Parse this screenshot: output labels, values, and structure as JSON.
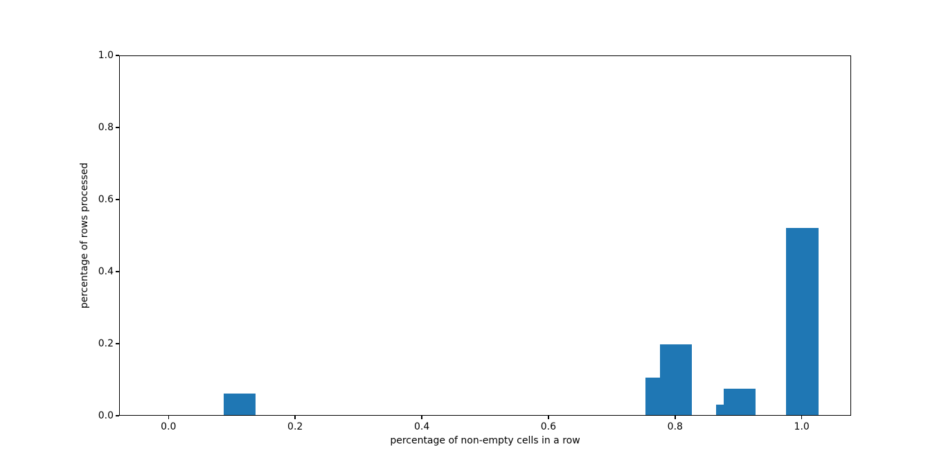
{
  "chart_data": {
    "type": "bar",
    "title": "",
    "xlabel": "percentage of non-empty cells in a row",
    "ylabel": "percentage of rows processed",
    "bar_color": "#1f77b4",
    "bar_width": 0.051,
    "xlim": [
      -0.078,
      1.078
    ],
    "ylim": [
      0,
      1
    ],
    "grid": "off",
    "legend": "none",
    "x_ticks": [
      {
        "value": 0.0,
        "label": "0.0"
      },
      {
        "value": 0.2,
        "label": "0.2"
      },
      {
        "value": 0.4,
        "label": "0.4"
      },
      {
        "value": 0.6,
        "label": "0.6"
      },
      {
        "value": 0.8,
        "label": "0.8"
      },
      {
        "value": 1.0,
        "label": "1.0"
      }
    ],
    "y_ticks": [
      {
        "value": 0.0,
        "label": "0.0"
      },
      {
        "value": 0.2,
        "label": "0.2"
      },
      {
        "value": 0.4,
        "label": "0.4"
      },
      {
        "value": 0.6,
        "label": "0.6"
      },
      {
        "value": 0.8,
        "label": "0.8"
      },
      {
        "value": 1.0,
        "label": "1.0"
      }
    ],
    "bars": [
      {
        "x": 0.111,
        "height": 0.063
      },
      {
        "x": 0.778,
        "height": 0.107
      },
      {
        "x": 0.8,
        "height": 0.2
      },
      {
        "x": 0.889,
        "height": 0.033
      },
      {
        "x": 0.901,
        "height": 0.077
      },
      {
        "x": 1.0,
        "height": 0.523
      }
    ]
  }
}
